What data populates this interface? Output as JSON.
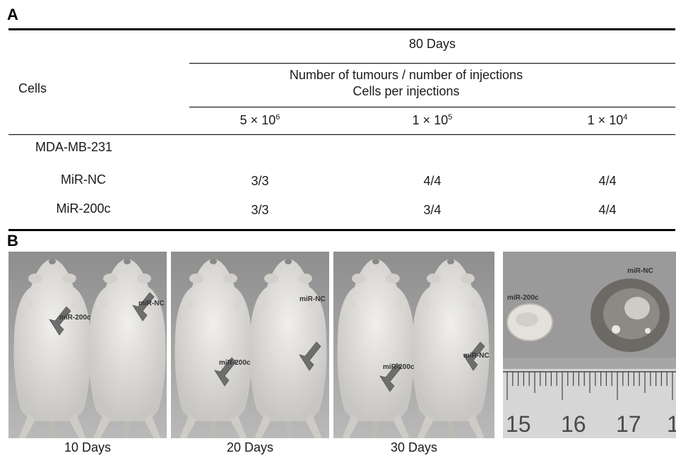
{
  "panel_a": {
    "label": "A",
    "row_header": "Cells",
    "time_header": "80 Days",
    "subheader_line1": "Number of tumours / number of injections",
    "subheader_line2": "Cells per injections",
    "doses": [
      {
        "base": "5 × 10",
        "exp": "6"
      },
      {
        "base": "1 × 10",
        "exp": "5"
      },
      {
        "base": "1 × 10",
        "exp": "4"
      }
    ],
    "group_label": "MDA-MB-231",
    "rows": [
      {
        "name": "MiR-NC",
        "values": [
          "3/3",
          "4/4",
          "4/4"
        ]
      },
      {
        "name": "MiR-200c",
        "values": [
          "3/3",
          "3/4",
          "4/4"
        ]
      }
    ]
  },
  "panel_b": {
    "label": "B",
    "photos": [
      {
        "caption": "10 Days",
        "left_label": "miR-200c",
        "right_label": "miR-NC"
      },
      {
        "caption": "20 Days",
        "left_label": "miR-200c",
        "right_label": "miR-NC"
      },
      {
        "caption": "30 Days",
        "left_label": "miR-200c",
        "right_label": "miR-NC"
      }
    ],
    "tumour_photo": {
      "left_label": "miR-200c",
      "right_label": "miR-NC",
      "ruler_numbers": [
        "15",
        "16",
        "17",
        "1"
      ]
    }
  }
}
